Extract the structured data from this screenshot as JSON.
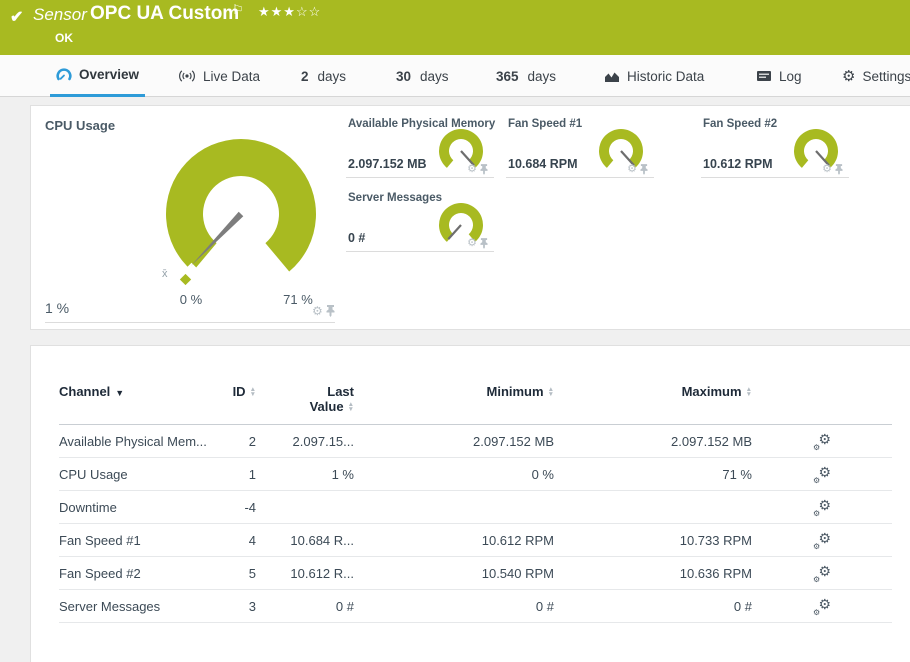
{
  "icons": {
    "check": "✔",
    "flag": "⚐",
    "gear": "⚙"
  },
  "colors": {
    "header_green": "#a8ba21",
    "gauge_green": "#a8ba21",
    "tab_accent": "#2e9bd8"
  },
  "header": {
    "kind_label": "Sensor",
    "title": "OPC UA Custom",
    "status": "OK",
    "stars": "★★★☆☆"
  },
  "tabs": [
    {
      "label": "Overview",
      "active": true
    },
    {
      "label": "Live Data"
    },
    {
      "prefix": "2",
      "label": "days"
    },
    {
      "prefix": "30",
      "label": "days"
    },
    {
      "prefix": "365",
      "label": "days"
    },
    {
      "label": "Historic Data"
    },
    {
      "label": "Log"
    },
    {
      "label": "Settings"
    }
  ],
  "gauges": {
    "cpu": {
      "title": "CPU Usage",
      "value": "1 %",
      "min_label": "0 %",
      "max_label": "71 %",
      "avg_marker": "x̄",
      "needle_deg": 134
    },
    "small": [
      {
        "title": "Available Physical Memory",
        "value": "2.097.152 MB",
        "needle_deg": 48
      },
      {
        "title": "Fan Speed #1",
        "value": "10.684 RPM",
        "needle_deg": 48
      },
      {
        "title": "Fan Speed #2",
        "value": "10.612 RPM",
        "needle_deg": 48
      },
      {
        "title": "Server Messages",
        "value": "0 #",
        "needle_deg": 132
      }
    ]
  },
  "table": {
    "headers": {
      "channel": "Channel",
      "id": "ID",
      "last_1": "Last",
      "last_2": "Value",
      "min": "Minimum",
      "max": "Maximum"
    },
    "rows": [
      {
        "channel": "Available Physical Mem...",
        "id": "2",
        "last": "2.097.15...",
        "min": "2.097.152 MB",
        "max": "2.097.152 MB"
      },
      {
        "channel": "CPU Usage",
        "id": "1",
        "last": "1 %",
        "min": "0 %",
        "max": "71 %"
      },
      {
        "channel": "Downtime",
        "id": "-4",
        "last": "",
        "min": "",
        "max": ""
      },
      {
        "channel": "Fan Speed #1",
        "id": "4",
        "last": "10.684 R...",
        "min": "10.612 RPM",
        "max": "10.733 RPM"
      },
      {
        "channel": "Fan Speed #2",
        "id": "5",
        "last": "10.612 R...",
        "min": "10.540 RPM",
        "max": "10.636 RPM"
      },
      {
        "channel": "Server Messages",
        "id": "3",
        "last": "0 #",
        "min": "0 #",
        "max": "0 #"
      }
    ]
  }
}
